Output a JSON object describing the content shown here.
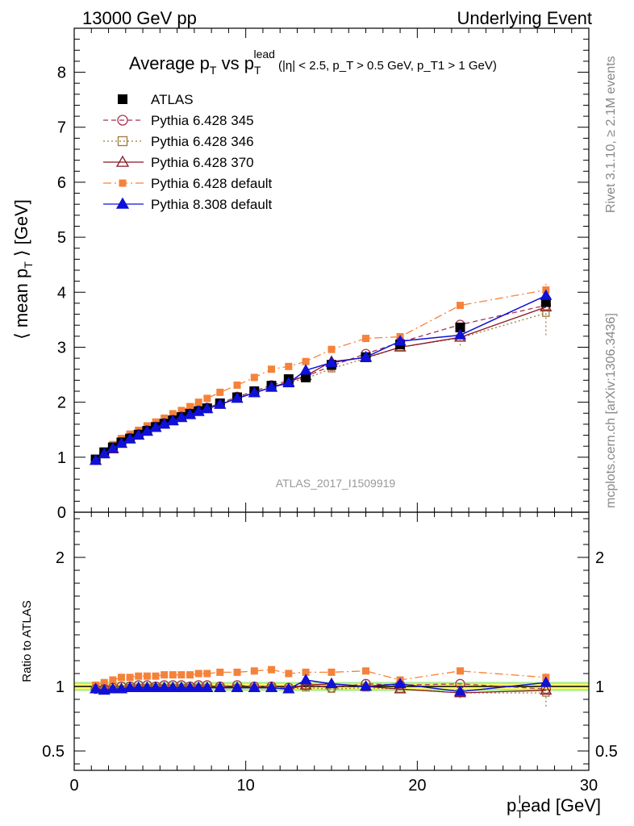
{
  "header": {
    "left": "13000 GeV pp",
    "right": "Underlying Event"
  },
  "side_labels": {
    "rivet": "Rivet 3.1.10, ≥ 2.1M events",
    "mcplots": "mcplots.cern.ch [arXiv:1306.3436]"
  },
  "watermark": "ATLAS_2017_I1509919",
  "chart_data": [
    {
      "type": "line",
      "title": "Average p_T vs p_T^lead",
      "title_main": "Average p",
      "title_sub1": "T",
      "title_vs": " vs p",
      "title_sub2": "T",
      "title_sup2": "lead",
      "title_cuts": "(|η| < 2.5, p_T > 0.5 GeV, p_T1 > 1 GeV)",
      "ylabel": "⟨ mean p_T ⟩ [GeV]",
      "ylabel_pre": "⟨ mean p",
      "ylabel_sub": "T",
      "ylabel_post": " ⟩ [GeV]",
      "xlim": [
        0,
        30
      ],
      "ylim": [
        0,
        8.8
      ],
      "yticks": [
        "0",
        "1",
        "2",
        "3",
        "4",
        "5",
        "6",
        "7",
        "8"
      ],
      "legend_placement": "top-left",
      "x": [
        1.25,
        1.75,
        2.25,
        2.75,
        3.25,
        3.75,
        4.25,
        4.75,
        5.25,
        5.75,
        6.25,
        6.75,
        7.25,
        7.75,
        8.5,
        9.5,
        10.5,
        11.5,
        12.5,
        13.5,
        15,
        17,
        19,
        22.5,
        27.5
      ],
      "series": [
        {
          "name": "ATLAS",
          "color": "#000000",
          "marker": "square-filled",
          "line": "none",
          "values": [
            0.96,
            1.09,
            1.18,
            1.27,
            1.34,
            1.41,
            1.48,
            1.55,
            1.61,
            1.67,
            1.73,
            1.79,
            1.84,
            1.89,
            1.98,
            2.09,
            2.2,
            2.3,
            2.42,
            2.45,
            2.68,
            2.82,
            3.05,
            3.36,
            3.82
          ]
        },
        {
          "name": "Pythia 6.428 345",
          "color": "#a83253",
          "marker": "circle-open",
          "line": "dashed",
          "values": [
            0.95,
            1.07,
            1.17,
            1.27,
            1.35,
            1.42,
            1.49,
            1.55,
            1.62,
            1.68,
            1.74,
            1.79,
            1.85,
            1.9,
            1.98,
            2.1,
            2.2,
            2.31,
            2.39,
            2.47,
            2.66,
            2.88,
            3.09,
            3.41,
            3.76
          ]
        },
        {
          "name": "Pythia 6.428 346",
          "color": "#9c7a36",
          "marker": "square-open",
          "line": "dotted",
          "values": [
            0.94,
            1.06,
            1.16,
            1.25,
            1.33,
            1.4,
            1.47,
            1.54,
            1.6,
            1.66,
            1.72,
            1.78,
            1.83,
            1.88,
            1.96,
            2.08,
            2.18,
            2.27,
            2.36,
            2.43,
            2.61,
            2.8,
            3.0,
            3.17,
            3.62
          ]
        },
        {
          "name": "Pythia 6.428 370",
          "color": "#8c1520",
          "marker": "triangle-open",
          "line": "solid",
          "values": [
            0.94,
            1.06,
            1.15,
            1.25,
            1.33,
            1.4,
            1.47,
            1.54,
            1.6,
            1.66,
            1.72,
            1.78,
            1.83,
            1.88,
            1.96,
            2.07,
            2.17,
            2.27,
            2.37,
            2.48,
            2.74,
            2.81,
            3.0,
            3.18,
            3.73
          ]
        },
        {
          "name": "Pythia 6.428 default",
          "color": "#f6823a",
          "marker": "square-filled",
          "line": "dashdot",
          "values": [
            0.97,
            1.11,
            1.23,
            1.34,
            1.42,
            1.49,
            1.57,
            1.64,
            1.71,
            1.79,
            1.85,
            1.92,
            2.0,
            2.07,
            2.18,
            2.31,
            2.45,
            2.6,
            2.65,
            2.74,
            2.96,
            3.16,
            3.19,
            3.76,
            4.04
          ]
        },
        {
          "name": "Pythia 8.308 default",
          "color": "#1010d8",
          "marker": "triangle-filled",
          "line": "solid",
          "values": [
            0.94,
            1.06,
            1.16,
            1.25,
            1.33,
            1.4,
            1.47,
            1.54,
            1.6,
            1.66,
            1.72,
            1.77,
            1.83,
            1.88,
            1.96,
            2.07,
            2.17,
            2.27,
            2.35,
            2.58,
            2.72,
            2.82,
            3.11,
            3.22,
            3.94
          ]
        }
      ],
      "error_bars": {
        "x": [
          22.5,
          27.5
        ],
        "ATLAS": [
          0.05,
          0.08
        ],
        "Pythia 6.428 346": [
          0.14,
          0.4
        ],
        "Pythia 6.428 default": [
          0.06,
          0.12
        ]
      }
    },
    {
      "type": "line",
      "ylabel": "Ratio to ATLAS",
      "xlabel": "p_T^lead [GeV]",
      "xlabel_pre": "p",
      "xlabel_sub": "T",
      "xlabel_sup": "l",
      "xlabel_post": "ead [GeV]",
      "xlim": [
        0,
        30
      ],
      "ylim": [
        0.35,
        2.35
      ],
      "yticks": [
        "0.5",
        "1",
        "2"
      ],
      "xticks": [
        "0",
        "10",
        "20",
        "30"
      ],
      "reference_band": {
        "inner": 0.02,
        "outer": 0.035,
        "inner_color": "#ffff66",
        "outer_color": "#a8ec8c"
      },
      "x": [
        1.25,
        1.75,
        2.25,
        2.75,
        3.25,
        3.75,
        4.25,
        4.75,
        5.25,
        5.75,
        6.25,
        6.75,
        7.25,
        7.75,
        8.5,
        9.5,
        10.5,
        11.5,
        12.5,
        13.5,
        15,
        17,
        19,
        22.5,
        27.5
      ],
      "series": [
        {
          "name": "Pythia 6.428 345",
          "values": [
            0.98,
            0.98,
            0.99,
            1.0,
            1.0,
            1.01,
            1.01,
            1.0,
            1.01,
            1.01,
            1.01,
            1.0,
            1.01,
            1.01,
            1.0,
            1.01,
            1.0,
            1.0,
            0.99,
            1.01,
            0.99,
            1.02,
            1.01,
            1.02,
            0.98
          ]
        },
        {
          "name": "Pythia 6.428 346",
          "values": [
            0.98,
            0.97,
            0.98,
            0.98,
            0.99,
            0.99,
            0.99,
            0.99,
            0.99,
            0.99,
            0.99,
            0.99,
            0.99,
            0.99,
            0.99,
            0.99,
            0.99,
            0.99,
            0.98,
            0.99,
            0.98,
            0.99,
            0.98,
            0.95,
            0.95
          ]
        },
        {
          "name": "Pythia 6.428 370",
          "values": [
            0.98,
            0.97,
            0.98,
            0.98,
            0.99,
            0.99,
            0.99,
            0.99,
            0.99,
            0.99,
            0.99,
            0.99,
            0.99,
            0.99,
            0.99,
            0.99,
            0.99,
            0.99,
            0.98,
            1.01,
            1.02,
            1.0,
            0.98,
            0.95,
            0.97
          ]
        },
        {
          "name": "Pythia 6.428 default",
          "values": [
            1.01,
            1.03,
            1.05,
            1.07,
            1.07,
            1.08,
            1.08,
            1.08,
            1.09,
            1.09,
            1.09,
            1.09,
            1.1,
            1.1,
            1.11,
            1.11,
            1.12,
            1.13,
            1.1,
            1.11,
            1.11,
            1.12,
            1.05,
            1.12,
            1.07
          ]
        },
        {
          "name": "Pythia 8.308 default",
          "values": [
            0.98,
            0.97,
            0.98,
            0.98,
            0.99,
            0.99,
            0.99,
            0.99,
            0.99,
            0.99,
            0.99,
            0.99,
            0.99,
            0.99,
            0.99,
            0.99,
            0.99,
            0.99,
            0.98,
            1.05,
            1.02,
            1.0,
            1.02,
            0.96,
            1.03
          ]
        }
      ]
    }
  ]
}
